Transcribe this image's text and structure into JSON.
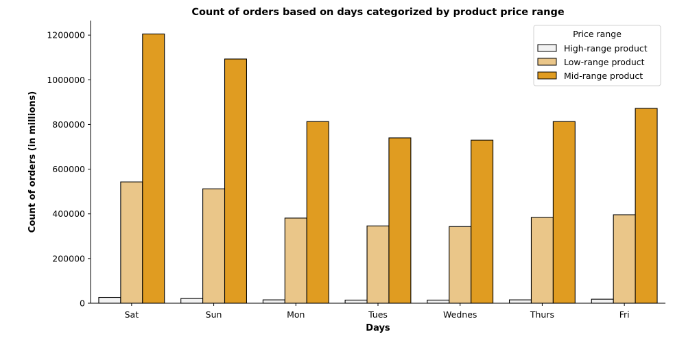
{
  "chart_data": {
    "type": "bar",
    "title": "Count of orders based on days categorized by product price range",
    "xlabel": "Days",
    "ylabel": "Count of orders (in millions)",
    "categories": [
      "Sat",
      "Sun",
      "Mon",
      "Tues",
      "Wednes",
      "Thurs",
      "Fri"
    ],
    "ylim": [
      0,
      1265000
    ],
    "yticks": [
      0,
      200000,
      400000,
      600000,
      800000,
      1000000,
      1200000
    ],
    "yticks_text": [
      "0",
      "200000",
      "400000",
      "600000",
      "800000",
      "1000000",
      "1200000"
    ],
    "grid": false,
    "legend": {
      "title": "Price range",
      "placement": "top-right"
    },
    "series": [
      {
        "name": "High-range product",
        "color": "#f2f2f2",
        "values": [
          26000,
          21000,
          15000,
          14000,
          14000,
          15000,
          18000
        ]
      },
      {
        "name": "Low-range product",
        "color": "#eac689",
        "values": [
          543000,
          512000,
          381000,
          346000,
          343000,
          384000,
          396000
        ]
      },
      {
        "name": "Mid-range product",
        "color": "#e09c21",
        "values": [
          1205000,
          1093000,
          813000,
          740000,
          730000,
          813000,
          872000
        ]
      }
    ]
  }
}
